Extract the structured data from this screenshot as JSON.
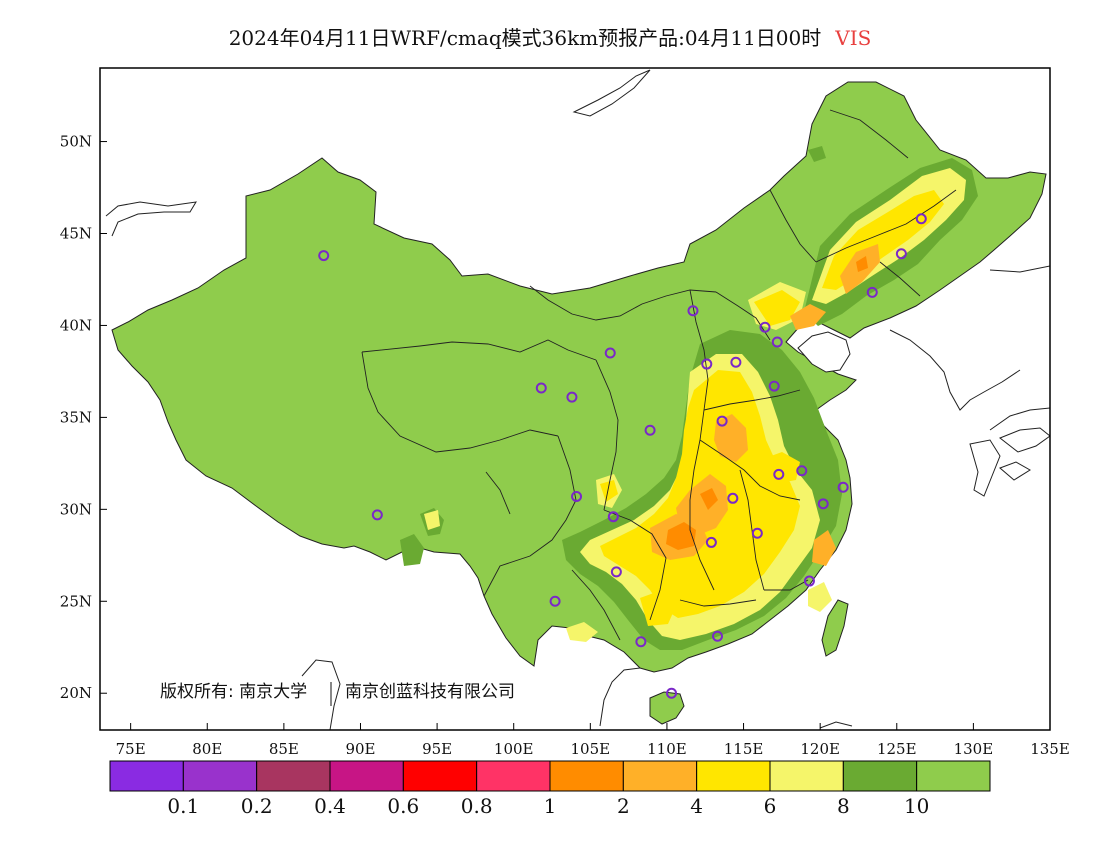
{
  "title": {
    "main": "2024年04月11日WRF/cmaq模式36km预报产品:04月11日00时",
    "variable": "VIS"
  },
  "map": {
    "lon_range": [
      73,
      135
    ],
    "lat_range": [
      18,
      54
    ],
    "lon_ticks": [
      "75E",
      "80E",
      "85E",
      "90E",
      "95E",
      "100E",
      "105E",
      "110E",
      "115E",
      "120E",
      "125E",
      "130E",
      "135E"
    ],
    "lat_ticks": [
      "50N",
      "45N",
      "40N",
      "35N",
      "30N",
      "25N",
      "20N"
    ],
    "copyright_owner": "版权所有: 南京大学",
    "copyright_company": "南京创蓝科技有限公司",
    "stations": [
      {
        "lon": 87.6,
        "lat": 43.8
      },
      {
        "lon": 91.1,
        "lat": 29.7
      },
      {
        "lon": 101.8,
        "lat": 36.6
      },
      {
        "lon": 103.8,
        "lat": 36.1
      },
      {
        "lon": 106.3,
        "lat": 38.5
      },
      {
        "lon": 111.7,
        "lat": 40.8
      },
      {
        "lon": 104.1,
        "lat": 30.7
      },
      {
        "lon": 106.5,
        "lat": 29.6
      },
      {
        "lon": 106.7,
        "lat": 26.6
      },
      {
        "lon": 102.7,
        "lat": 25.0
      },
      {
        "lon": 108.3,
        "lat": 22.8
      },
      {
        "lon": 110.3,
        "lat": 20.0
      },
      {
        "lon": 113.3,
        "lat": 23.1
      },
      {
        "lon": 108.9,
        "lat": 34.3
      },
      {
        "lon": 112.6,
        "lat": 37.9
      },
      {
        "lon": 114.5,
        "lat": 38.0
      },
      {
        "lon": 113.6,
        "lat": 34.8
      },
      {
        "lon": 117.0,
        "lat": 36.7
      },
      {
        "lon": 116.4,
        "lat": 39.9
      },
      {
        "lon": 117.2,
        "lat": 39.1
      },
      {
        "lon": 114.3,
        "lat": 30.6
      },
      {
        "lon": 112.9,
        "lat": 28.2
      },
      {
        "lon": 115.9,
        "lat": 28.7
      },
      {
        "lon": 117.3,
        "lat": 31.9
      },
      {
        "lon": 118.8,
        "lat": 32.1
      },
      {
        "lon": 120.2,
        "lat": 30.3
      },
      {
        "lon": 121.5,
        "lat": 31.2
      },
      {
        "lon": 119.3,
        "lat": 26.1
      },
      {
        "lon": 123.4,
        "lat": 41.8
      },
      {
        "lon": 125.3,
        "lat": 43.9
      },
      {
        "lon": 126.6,
        "lat": 45.8
      }
    ]
  },
  "colorbar": {
    "colors": [
      "#8a2be2",
      "#9932cc",
      "#a83560",
      "#c71585",
      "#ff0000",
      "#ff3366",
      "#ff8c00",
      "#ffb028",
      "#ffe600",
      "#f5f56a",
      "#6aaa32",
      "#8fcc4c"
    ],
    "labels": [
      "0.1",
      "0.2",
      "0.4",
      "0.6",
      "0.8",
      "1",
      "2",
      "4",
      "6",
      "8",
      "10"
    ]
  }
}
